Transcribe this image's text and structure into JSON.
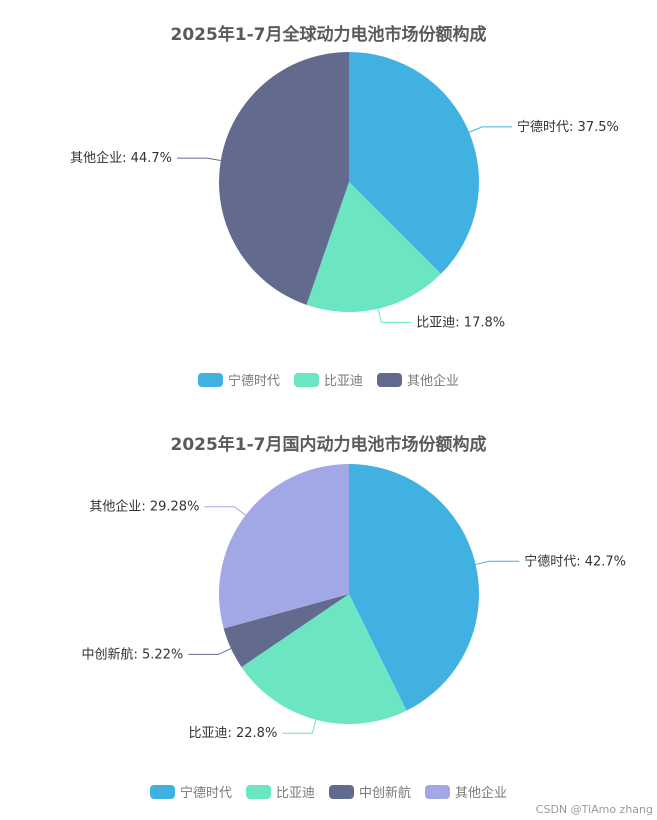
{
  "chart_data": [
    {
      "type": "pie",
      "title": "2025年1-7月全球动力电池市场份额构成",
      "series": [
        {
          "name": "宁德时代",
          "value": 37.5,
          "label": "宁德时代: 37.5%",
          "color": "#41b1e2"
        },
        {
          "name": "比亚迪",
          "value": 17.8,
          "label": "比亚迪: 17.8%",
          "color": "#6ce5c2"
        },
        {
          "name": "其他企业",
          "value": 44.7,
          "label": "其他企业: 44.7%",
          "color": "#626b8d"
        }
      ],
      "legend_position": "bottom"
    },
    {
      "type": "pie",
      "title": "2025年1-7月国内动力电池市场份额构成",
      "series": [
        {
          "name": "宁德时代",
          "value": 42.7,
          "label": "宁德时代: 42.7%",
          "color": "#41b1e2"
        },
        {
          "name": "比亚迪",
          "value": 22.8,
          "label": "比亚迪: 22.8%",
          "color": "#6ce5c2"
        },
        {
          "name": "中创新航",
          "value": 5.22,
          "label": "中创新航: 5.22%",
          "color": "#626b8d"
        },
        {
          "name": "其他企业",
          "value": 29.28,
          "label": "其他企业: 29.28%",
          "color": "#a2a7e5"
        }
      ],
      "legend_position": "bottom"
    }
  ],
  "watermark": "CSDN @TiAmo zhang"
}
